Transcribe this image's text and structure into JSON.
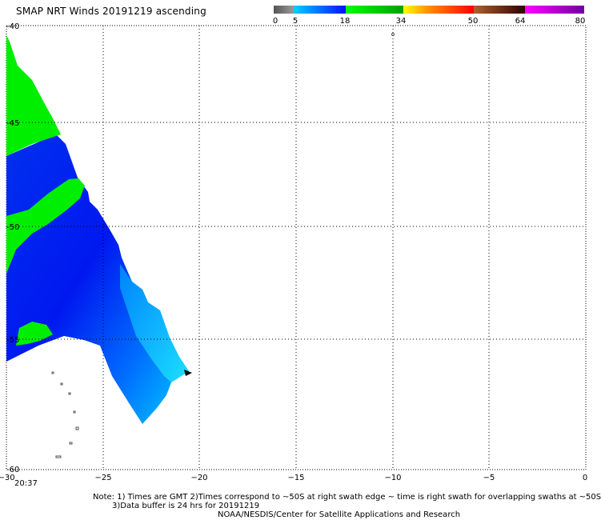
{
  "title": "SMAP NRT Winds 20191219 ascending",
  "colorbar": {
    "segments": [
      {
        "from": 0,
        "to": 5,
        "colors": [
          "#555555",
          "#999999"
        ]
      },
      {
        "from": 5,
        "to": 18,
        "colors": [
          "#00c8ff",
          "#0000ff"
        ]
      },
      {
        "from": 18,
        "to": 34,
        "colors": [
          "#00ff00",
          "#008000"
        ]
      },
      {
        "from": 34,
        "to": 50,
        "colors": [
          "#ffff00",
          "#ff0000"
        ]
      },
      {
        "from": 50,
        "to": 64,
        "colors": [
          "#a0522d",
          "#330000"
        ]
      },
      {
        "from": 64,
        "to": 80,
        "colors": [
          "#ff00ff",
          "#7000a0"
        ]
      }
    ],
    "labels": [
      "0",
      "5",
      "18",
      "34",
      "50",
      "64",
      "80"
    ]
  },
  "map": {
    "lon_range": [
      -30,
      0
    ],
    "lat_range": [
      -60,
      -40
    ],
    "lon_ticks": [
      "−30",
      "−25",
      "−20",
      "−15",
      "−10",
      "−5",
      "0"
    ],
    "lat_ticks": [
      "-40",
      "-45",
      "-50",
      "-55",
      "-60"
    ]
  },
  "time_label": "20:37",
  "note_line1": "Note: 1) Times are GMT 2)Times correspond to ~50S at right swath edge ~ time is right swath for overlapping swaths at ~50S",
  "note_line2": "3)Data buffer is 24 hrs for 20191219",
  "credit": "NOAA/NESDIS/Center for Satellite Applications and Research"
}
